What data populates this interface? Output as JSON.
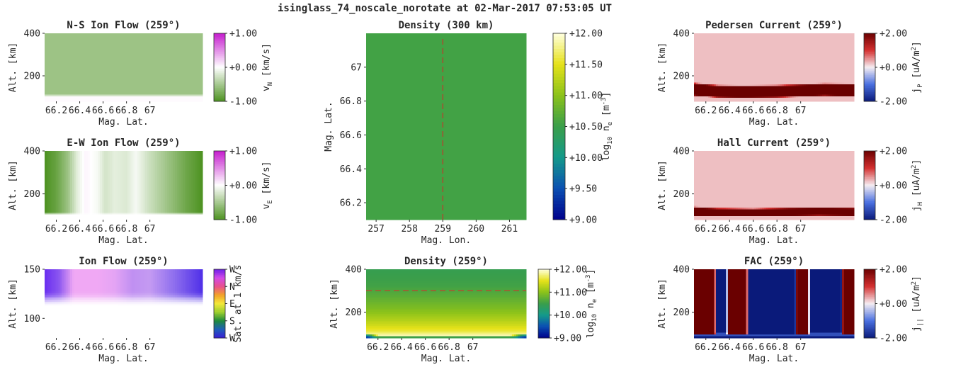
{
  "figure": {
    "title": "isinglass_74_noscale_norotate at 02-Mar-2017 07:53:05 UT"
  },
  "chart_data": [
    {
      "id": "ns_flow",
      "type": "heatmap",
      "title": "N-S Ion Flow (259°)",
      "xlabel": "Mag. Lat.",
      "ylabel": "Alt. [km]",
      "xlim": [
        66.1,
        67.45
      ],
      "ylim": [
        80,
        400
      ],
      "xticks": [
        "66.2",
        "66.4",
        "66.6",
        "66.8",
        "67"
      ],
      "xtick_values": [
        66.2,
        66.4,
        66.6,
        66.8,
        67.0
      ],
      "yticks": [
        "200",
        "400"
      ],
      "ytick_values": [
        200,
        400
      ],
      "colorbar": {
        "label": "vN [km/s]",
        "label_main": "v",
        "label_sub": "N",
        "label_unit": " [km/s]",
        "range": [
          -1,
          1
        ],
        "ticks": [
          "+1.00",
          "+0.00",
          "-1.00"
        ],
        "tick_values": [
          1,
          0,
          -1
        ],
        "colors": [
          "#4d9221",
          "#ffffff",
          "#c51bce"
        ]
      },
      "field": {
        "value_upper": -0.55,
        "value_low": 0.02,
        "low_boundary_km": 108
      }
    },
    {
      "id": "ew_flow",
      "type": "heatmap",
      "title": "E-W Ion Flow (259°)",
      "xlabel": "Mag. Lat.",
      "ylabel": "Alt. [km]",
      "xlim": [
        66.1,
        67.45
      ],
      "ylim": [
        80,
        400
      ],
      "xticks": [
        "66.2",
        "66.4",
        "66.6",
        "66.8",
        "67"
      ],
      "xtick_values": [
        66.2,
        66.4,
        66.6,
        66.8,
        67.0
      ],
      "yticks": [
        "200",
        "400"
      ],
      "ytick_values": [
        200,
        400
      ],
      "colorbar": {
        "label": "vE [km/s]",
        "label_main": "v",
        "label_sub": "E",
        "label_unit": " [km/s]",
        "range": [
          -1,
          1
        ],
        "ticks": [
          "+1.00",
          "+0.00",
          "-1.00"
        ],
        "tick_values": [
          1,
          0,
          -1
        ],
        "colors": [
          "#4d9221",
          "#ffffff",
          "#c51bce"
        ]
      },
      "field": {
        "lat_profile": [
          [
            66.1,
            -1.0
          ],
          [
            66.2,
            -0.85
          ],
          [
            66.3,
            -0.55
          ],
          [
            66.38,
            -0.15
          ],
          [
            66.45,
            0.05
          ],
          [
            66.55,
            -0.05
          ],
          [
            66.62,
            -0.25
          ],
          [
            66.7,
            -0.15
          ],
          [
            66.8,
            -0.2
          ],
          [
            66.88,
            -0.05
          ],
          [
            67.0,
            -0.3
          ],
          [
            67.15,
            -0.55
          ],
          [
            67.3,
            -0.8
          ],
          [
            67.45,
            -1.0
          ]
        ],
        "value_low": 0.0,
        "low_boundary_km": 108
      }
    },
    {
      "id": "ion_flow",
      "type": "heatmap",
      "title": "Ion Flow (259°)",
      "xlabel": "Mag. Lat.",
      "ylabel": "Alt. [km]",
      "xlim": [
        66.1,
        67.45
      ],
      "ylim": [
        80,
        150
      ],
      "xticks": [
        "66.2",
        "66.4",
        "66.6",
        "66.8",
        "67"
      ],
      "xtick_values": [
        66.2,
        66.4,
        66.6,
        66.8,
        67.0
      ],
      "yticks": [
        "100",
        "150"
      ],
      "ytick_values": [
        100,
        150
      ],
      "colorbar": {
        "label": "Sat. at 1 km/s",
        "ticks": [
          "W",
          "N",
          "E",
          "S",
          "W"
        ],
        "colors": [
          "#3a1cd6",
          "#1e5fb8",
          "#1e8a3c",
          "#9ccf2e",
          "#f4e93a",
          "#f3a22a",
          "#e9508e",
          "#d24ae8",
          "#6a1ee8"
        ]
      },
      "field": {
        "lat_colors": [
          [
            66.1,
            "#6a2ff0"
          ],
          [
            66.22,
            "#8a55f0"
          ],
          [
            66.35,
            "#f0a8f4"
          ],
          [
            66.55,
            "#f0a8f4"
          ],
          [
            66.7,
            "#e4a4f4"
          ],
          [
            66.85,
            "#c090f2"
          ],
          [
            67.0,
            "#c49af2"
          ],
          [
            67.2,
            "#9070ee"
          ],
          [
            67.45,
            "#5030e8"
          ]
        ],
        "fade_top_km": 128,
        "fade_bottom_km": 112
      }
    },
    {
      "id": "density_300",
      "type": "heatmap",
      "title": "Density (300 km)",
      "xlabel": "Mag. Lon.",
      "ylabel": "Mag. Lat.",
      "xlim": [
        256.7,
        261.5
      ],
      "ylim": [
        66.1,
        67.2
      ],
      "xticks": [
        "257",
        "258",
        "259",
        "260",
        "261"
      ],
      "xtick_values": [
        257,
        258,
        259,
        260,
        261
      ],
      "yticks": [
        "66.2",
        "66.4",
        "66.6",
        "66.8",
        "67"
      ],
      "ytick_values": [
        66.2,
        66.4,
        66.6,
        66.8,
        67.0
      ],
      "colorbar": {
        "label": "log10 ne [m-3]",
        "label_main": "log",
        "label_sub": "10",
        "label_mid": " n",
        "label_sub2": "e",
        "label_unit": " [m",
        "label_sup": "-3",
        "label_end": "]",
        "range": [
          9,
          12
        ],
        "ticks": [
          "+12.00",
          "+11.50",
          "+11.00",
          "+10.50",
          "+10.00",
          "+9.50",
          "+9.00"
        ],
        "tick_values": [
          12,
          11.5,
          11,
          10.5,
          10,
          9.5,
          9
        ],
        "colors": [
          "#00008b",
          "#0a4fb2",
          "#149a8a",
          "#3a9e4a",
          "#8bc21a",
          "#e6e21a",
          "#ffffe0"
        ]
      },
      "field": {
        "value": 10.55
      },
      "marker_lon": 259.0
    },
    {
      "id": "density_259",
      "type": "heatmap",
      "title": "Density (259°)",
      "xlabel": "Mag. Lat.",
      "ylabel": "Alt. [km]",
      "xlim": [
        66.1,
        67.45
      ],
      "ylim": [
        80,
        400
      ],
      "xticks": [
        "66.2",
        "66.4",
        "66.6",
        "66.8",
        "67"
      ],
      "xtick_values": [
        66.2,
        66.4,
        66.6,
        66.8,
        67.0
      ],
      "yticks": [
        "200",
        "400"
      ],
      "ytick_values": [
        200,
        400
      ],
      "colorbar": {
        "label": "log10 ne [m-3]",
        "label_main": "log",
        "label_sub": "10",
        "label_mid": " n",
        "label_sub2": "e",
        "label_unit": " [m",
        "label_sup": "-3",
        "label_end": "]",
        "range": [
          9,
          12
        ],
        "ticks": [
          "+12.00",
          "+11.00",
          "+10.00",
          "+9.00"
        ],
        "tick_values": [
          12,
          11,
          10,
          9
        ],
        "colors": [
          "#00008b",
          "#0a4fb2",
          "#149a8a",
          "#3a9e4a",
          "#8bc21a",
          "#e6e21a",
          "#ffffe0"
        ]
      },
      "field": {
        "alt_profile": [
          [
            80,
            9.6
          ],
          [
            90,
            11.9
          ],
          [
            110,
            11.6
          ],
          [
            150,
            11.3
          ],
          [
            200,
            11.0
          ],
          [
            260,
            10.75
          ],
          [
            320,
            10.55
          ],
          [
            400,
            10.45
          ]
        ],
        "edge_low_value": 9.4
      },
      "marker_alt": 300
    },
    {
      "id": "pedersen",
      "type": "heatmap",
      "title": "Pedersen Current (259°)",
      "xlabel": "Mag. Lat.",
      "ylabel": "Alt. [km]",
      "xlim": [
        66.1,
        67.45
      ],
      "ylim": [
        80,
        400
      ],
      "xticks": [
        "66.2",
        "66.4",
        "66.6",
        "66.8",
        "67"
      ],
      "xtick_values": [
        66.2,
        66.4,
        66.6,
        66.8,
        67.0
      ],
      "yticks": [
        "200",
        "400"
      ],
      "ytick_values": [
        200,
        400
      ],
      "colorbar": {
        "label": "jP [uA/m2]",
        "label_main": "j",
        "label_sub": "P",
        "label_unit": " [uA/m",
        "label_sup": "2",
        "label_end": "]",
        "range": [
          -2,
          2
        ],
        "ticks": [
          "+2.00",
          "+0.00",
          "-2.00"
        ],
        "tick_values": [
          2,
          0,
          -2
        ],
        "colors": [
          "#0a1a7a",
          "#4a70e0",
          "#f6eef2",
          "#d43030",
          "#6a0000"
        ]
      },
      "field": {
        "background": 0.25,
        "band_value": 2.0,
        "band": [
          [
            66.1,
            108,
            162
          ],
          [
            66.3,
            100,
            152
          ],
          [
            66.5,
            98,
            150
          ],
          [
            66.8,
            100,
            152
          ],
          [
            67.0,
            104,
            156
          ],
          [
            67.2,
            108,
            160
          ],
          [
            67.45,
            104,
            158
          ]
        ]
      }
    },
    {
      "id": "hall",
      "type": "heatmap",
      "title": "Hall Current (259°)",
      "xlabel": "Mag. Lat.",
      "ylabel": "Alt. [km]",
      "xlim": [
        66.1,
        67.45
      ],
      "ylim": [
        80,
        400
      ],
      "xticks": [
        "66.2",
        "66.4",
        "66.6",
        "66.8",
        "67"
      ],
      "xtick_values": [
        66.2,
        66.4,
        66.6,
        66.8,
        67.0
      ],
      "yticks": [
        "200",
        "400"
      ],
      "ytick_values": [
        200,
        400
      ],
      "colorbar": {
        "label": "jH [uA/m2]",
        "label_main": "j",
        "label_sub": "H",
        "label_unit": " [uA/m",
        "label_sup": "2",
        "label_end": "]",
        "range": [
          -2,
          2
        ],
        "ticks": [
          "+2.00",
          "+0.00",
          "-2.00"
        ],
        "tick_values": [
          2,
          0,
          -2
        ],
        "colors": [
          "#0a1a7a",
          "#4a70e0",
          "#f6eef2",
          "#d43030",
          "#6a0000"
        ]
      },
      "field": {
        "background": 0.25,
        "band_value": 2.0,
        "band": [
          [
            66.1,
            98,
            136
          ],
          [
            66.3,
            96,
            130
          ],
          [
            66.6,
            96,
            128
          ],
          [
            66.9,
            98,
            132
          ],
          [
            67.15,
            100,
            134
          ],
          [
            67.45,
            98,
            132
          ]
        ]
      }
    },
    {
      "id": "fac",
      "type": "heatmap",
      "title": "FAC (259°)",
      "xlabel": "Mag. Lat.",
      "ylabel": "Alt. [km]",
      "xlim": [
        66.1,
        67.45
      ],
      "ylim": [
        80,
        400
      ],
      "xticks": [
        "66.2",
        "66.4",
        "66.6",
        "66.8",
        "67"
      ],
      "xtick_values": [
        66.2,
        66.4,
        66.6,
        66.8,
        67.0
      ],
      "yticks": [
        "200",
        "400"
      ],
      "ytick_values": [
        200,
        400
      ],
      "colorbar": {
        "label": "j|| [uA/m2]",
        "label_main": "j",
        "label_sub": "||",
        "label_unit": " [uA/m",
        "label_sup": "2",
        "label_end": "]",
        "range": [
          -2,
          2
        ],
        "ticks": [
          "+2.00",
          "+0.00",
          "-2.00"
        ],
        "tick_values": [
          2,
          0,
          -2
        ],
        "colors": [
          "#0a1a7a",
          "#4a70e0",
          "#f6eef2",
          "#d43030",
          "#6a0000"
        ]
      },
      "field": {
        "upper_value": 2.0,
        "lower_value": -2.0,
        "lower_top_km": 96,
        "negative_columns": [
          [
            66.28,
            66.38,
            100
          ],
          [
            66.55,
            66.96,
            96
          ],
          [
            67.07,
            67.35,
            100
          ]
        ]
      }
    }
  ]
}
